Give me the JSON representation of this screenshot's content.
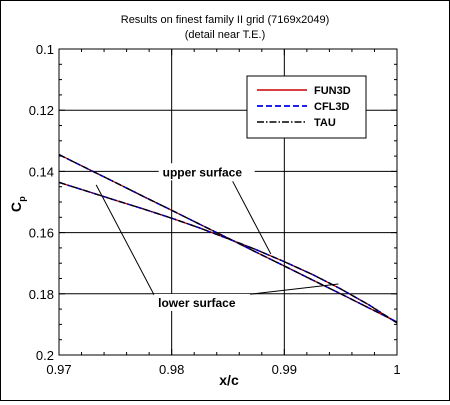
{
  "chart_data": {
    "type": "line",
    "title": "Results on finest family II grid (7169x2049)",
    "subtitle": "(detail near T.E.)",
    "xlabel": "x/c",
    "ylabel_main": "C",
    "ylabel_sub": "p",
    "xlim": [
      0.97,
      1.0
    ],
    "ylim": [
      0.2,
      0.1
    ],
    "y_inverted": true,
    "grid": true,
    "legend_position": "top-right",
    "x_ticks": [
      {
        "value": 0.97,
        "label": "0.97"
      },
      {
        "value": 0.98,
        "label": "0.98"
      },
      {
        "value": 0.99,
        "label": "0.99"
      },
      {
        "value": 1.0,
        "label": "1"
      }
    ],
    "y_ticks": [
      {
        "value": 0.1,
        "label": "0.1"
      },
      {
        "value": 0.12,
        "label": "0.12"
      },
      {
        "value": 0.14,
        "label": "0.14"
      },
      {
        "value": 0.16,
        "label": "0.16"
      },
      {
        "value": 0.18,
        "label": "0.18"
      },
      {
        "value": 0.2,
        "label": "0.2"
      }
    ],
    "series": [
      {
        "name": "FUN3D",
        "color": "#cc0000",
        "dash": "solid"
      },
      {
        "name": "CFL3D",
        "color": "#0000ee",
        "dash": "dashed"
      },
      {
        "name": "TAU",
        "color": "#000000",
        "dash": "dashdot"
      }
    ],
    "surfaces": {
      "upper": {
        "x": [
          0.97,
          0.9725,
          0.975,
          0.9775,
          0.98,
          0.9825,
          0.985,
          0.9875,
          0.99,
          0.9925,
          0.995,
          0.9975,
          1.0
        ],
        "y": [
          0.1345,
          0.1391,
          0.1436,
          0.1482,
          0.1527,
          0.1573,
          0.1618,
          0.1664,
          0.1709,
          0.1755,
          0.18,
          0.1846,
          0.1892
        ]
      },
      "lower": {
        "x": [
          0.97,
          0.9725,
          0.975,
          0.9775,
          0.98,
          0.9825,
          0.985,
          0.9875,
          0.99,
          0.9925,
          0.995,
          0.9975,
          1.0
        ],
        "y": [
          0.1436,
          0.1465,
          0.1494,
          0.1523,
          0.1553,
          0.1585,
          0.162,
          0.1656,
          0.1695,
          0.1737,
          0.1784,
          0.1836,
          0.1895
        ]
      }
    },
    "annotations": [
      {
        "text": "upper surface",
        "tx": 0.9792,
        "ty": 0.1416,
        "ax": 0.9888,
        "ay": 0.167
      },
      {
        "text": "lower surface",
        "tx": 0.9788,
        "ty": 0.1843,
        "ax": 0.9733,
        "ay": 0.1444,
        "ax2": 0.9948,
        "ay2": 0.1768
      }
    ]
  }
}
